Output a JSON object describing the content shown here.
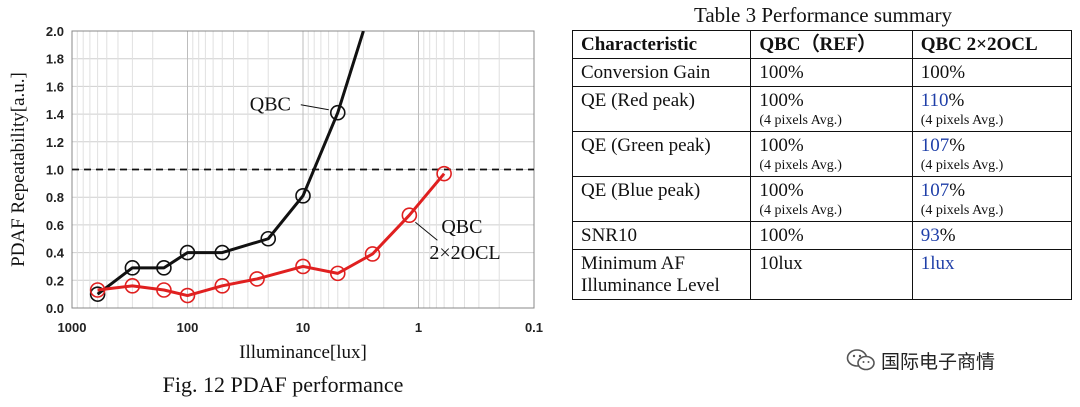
{
  "figure": {
    "caption": "Fig. 12 PDAF performance",
    "annotation_qbc": "QBC",
    "annotation_ocl_line1": "QBC",
    "annotation_ocl_line2": "2×2OCL"
  },
  "chart_data": {
    "type": "line",
    "xlabel": "Illuminance[lux]",
    "ylabel": "PDAF Repeatability[a.u.]",
    "xscale": "log",
    "x_reversed": true,
    "xlim": [
      1000,
      0.1
    ],
    "ylim": [
      0,
      2.0
    ],
    "x_ticks": [
      1000,
      100,
      10,
      1,
      0.1
    ],
    "x_tick_labels": [
      "1000",
      "100",
      "10",
      "1",
      "0.1"
    ],
    "y_ticks": [
      0.0,
      0.2,
      0.4,
      0.6,
      0.8,
      1.0,
      1.2,
      1.4,
      1.6,
      1.8,
      2.0
    ],
    "y_tick_labels": [
      "0.0",
      "0.2",
      "0.4",
      "0.6",
      "0.8",
      "1.0",
      "1.2",
      "1.4",
      "1.6",
      "1.8",
      "2.0"
    ],
    "grid": true,
    "reference_line": {
      "y": 1.0,
      "style": "dashed"
    },
    "series": [
      {
        "name": "QBC",
        "color": "#111111",
        "x": [
          600,
          300,
          160,
          100,
          50,
          20,
          10,
          5
        ],
        "y": [
          0.1,
          0.29,
          0.29,
          0.4,
          0.4,
          0.5,
          0.81,
          1.41
        ],
        "extends_to": {
          "x": 3.0,
          "y": 2.0
        }
      },
      {
        "name": "QBC 2×2OCL",
        "color": "#e02020",
        "x": [
          600,
          300,
          160,
          100,
          50,
          25,
          10,
          5,
          2.5,
          1.2,
          0.6
        ],
        "y": [
          0.13,
          0.16,
          0.13,
          0.09,
          0.16,
          0.21,
          0.3,
          0.25,
          0.39,
          0.67,
          0.97
        ]
      }
    ]
  },
  "table": {
    "title": "Table 3 Performance summary",
    "headers": [
      "Characteristic",
      "QBC（REF）",
      "QBC 2×2OCL"
    ],
    "rows": [
      {
        "c1": "Conversion Gain",
        "c2": "100%",
        "c2_note": "",
        "c3": "100%",
        "c3_unit": "",
        "c3_note": ""
      },
      {
        "c1": "QE (Red peak)",
        "c2": "100%",
        "c2_note": "(4 pixels Avg.)",
        "c3": "110",
        "c3_unit": "%",
        "c3_note": "(4 pixels Avg.)"
      },
      {
        "c1": "QE (Green peak)",
        "c2": "100%",
        "c2_note": "(4 pixels Avg.)",
        "c3": "107",
        "c3_unit": "%",
        "c3_note": "(4 pixels Avg.)"
      },
      {
        "c1": "QE (Blue peak)",
        "c2": "100%",
        "c2_note": "(4 pixels Avg.)",
        "c3": "107",
        "c3_unit": "%",
        "c3_note": "(4 pixels Avg.)"
      },
      {
        "c1": "SNR10",
        "c2": "100%",
        "c2_note": "",
        "c3": "93",
        "c3_unit": "%",
        "c3_note": ""
      },
      {
        "c1": "Minimum AF Illuminance Level",
        "c2": "10lux",
        "c2_note": "",
        "c3": "1lux",
        "c3_unit": "",
        "c3_note": ""
      }
    ]
  },
  "watermark": {
    "text": "国际电子商情",
    "icon": "wechat-icon"
  }
}
